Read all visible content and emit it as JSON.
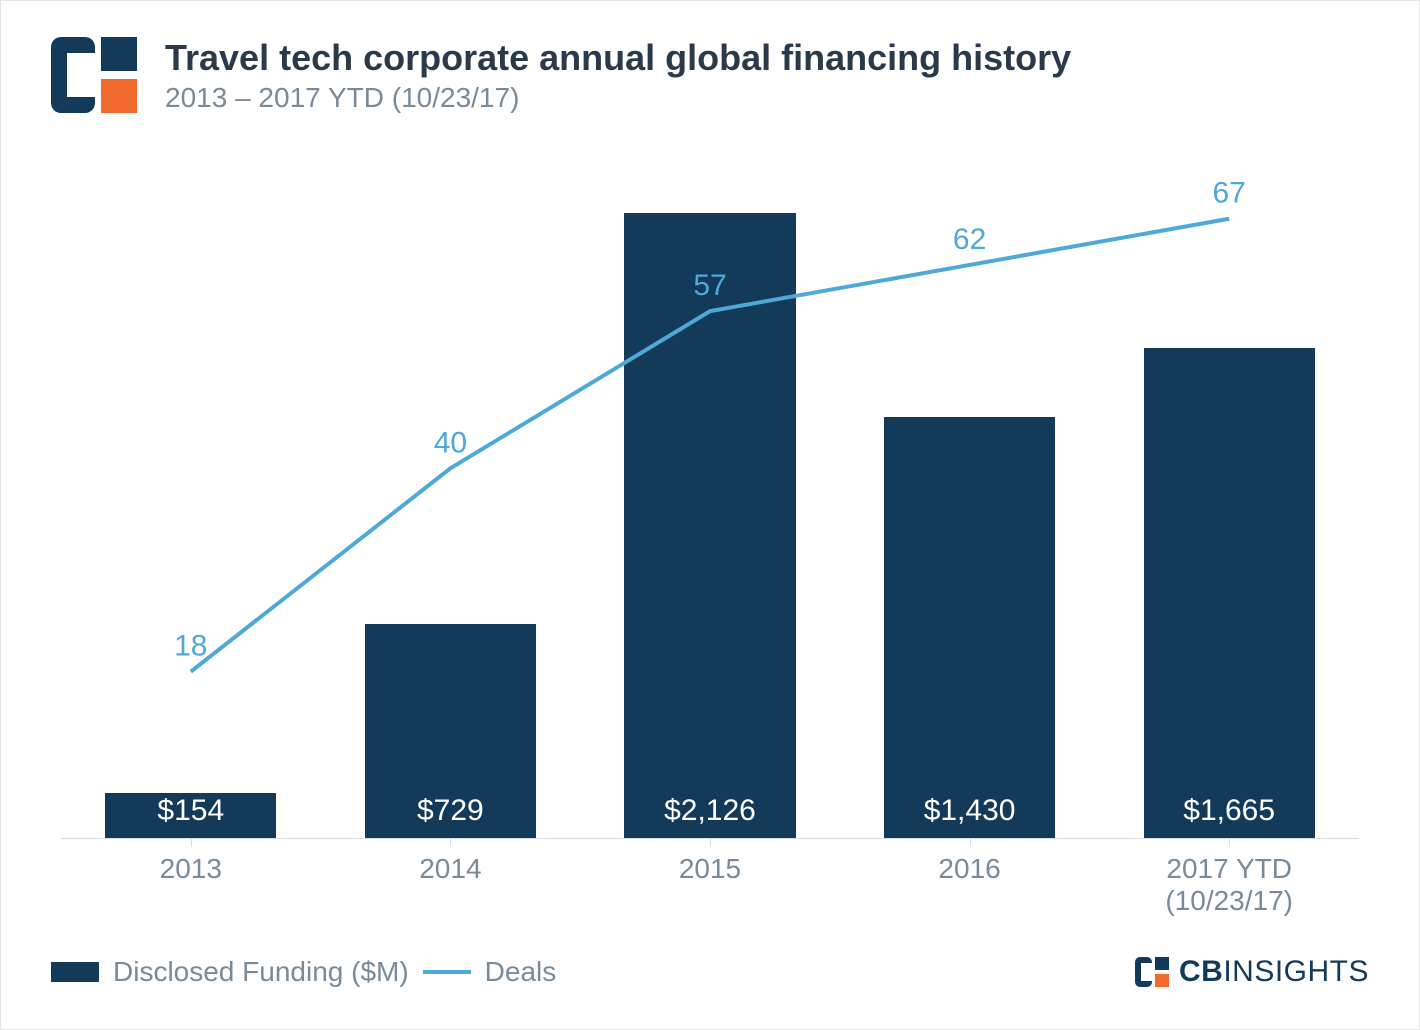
{
  "header": {
    "title": "Travel tech corporate annual global financing history",
    "subtitle": "2013 – 2017 YTD (10/23/17)"
  },
  "logo": {
    "primary": "#143a5a",
    "accent": "#f26a2e"
  },
  "chart": {
    "type": "bar+line",
    "categories": [
      "2013",
      "2014",
      "2015",
      "2016",
      "2017 YTD (10/23/17)"
    ],
    "bars": {
      "label": "Disclosed Funding ($M)",
      "values": [
        154,
        729,
        2126,
        1430,
        1665
      ],
      "display": [
        "$154",
        "$729",
        "$2,126",
        "$1,430",
        "$1,665"
      ],
      "color": "#143a5a",
      "value_text_color": "#ffffff",
      "value_fontsize": 30,
      "bar_width_fraction": 0.66,
      "ylim": [
        0,
        2200
      ]
    },
    "line": {
      "label": "Deals",
      "values": [
        18,
        40,
        57,
        62,
        67
      ],
      "display": [
        "18",
        "40",
        "57",
        "62",
        "67"
      ],
      "color": "#4ea8d8",
      "stroke_width": 4,
      "label_fontsize": 30,
      "ylim": [
        0,
        70
      ]
    },
    "axis": {
      "tick_color": "#d7dde2",
      "label_color": "#7a8a99",
      "label_fontsize": 28
    },
    "background_color": "#ffffff"
  },
  "legend": {
    "items": [
      {
        "kind": "bar",
        "label": "Disclosed Funding ($M)"
      },
      {
        "kind": "line",
        "label": "Deals"
      }
    ],
    "text_color": "#7a8a99",
    "fontsize": 28
  },
  "brand": {
    "name_bold": "CB",
    "name_light": "INSIGHTS",
    "color": "#143a5a",
    "accent": "#f26a2e"
  }
}
